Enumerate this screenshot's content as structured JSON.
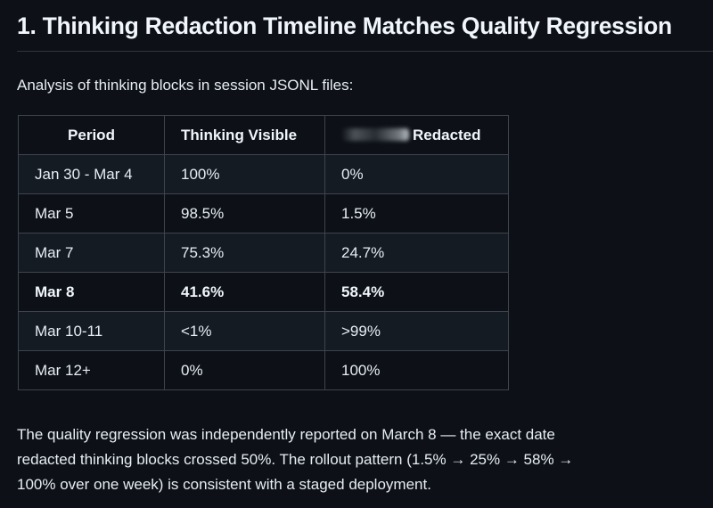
{
  "section": {
    "title": "1. Thinking Redaction Timeline Matches Quality Regression",
    "intro": "Analysis of thinking blocks in session JSONL files:"
  },
  "table": {
    "headers": {
      "period": "Period",
      "visible": "Thinking Visible",
      "redacted": "Redacted"
    },
    "rows": [
      {
        "period": "Jan 30 - Mar 4",
        "visible": "100%",
        "redacted": "0%"
      },
      {
        "period": "Mar 5",
        "visible": "98.5%",
        "redacted": "1.5%"
      },
      {
        "period": "Mar 7",
        "visible": "75.3%",
        "redacted": "24.7%"
      },
      {
        "period": "Mar 8",
        "visible": "41.6%",
        "redacted": "58.4%"
      },
      {
        "period": "Mar 10-11",
        "visible": "<1%",
        "redacted": ">99%"
      },
      {
        "period": "Mar 12+",
        "visible": "0%",
        "redacted": "100%"
      }
    ]
  },
  "summary": {
    "line1": "The quality regression was independently reported on March 8 — the exact date",
    "line2": "redacted thinking blocks crossed 50%. The rollout pattern (1.5% → 25% → 58% →",
    "line3": "100% over one week) is consistent with a staged deployment."
  }
}
